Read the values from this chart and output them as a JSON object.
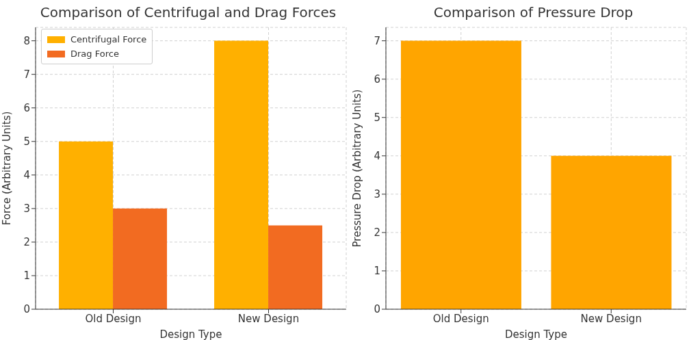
{
  "chart_data": [
    {
      "type": "bar",
      "title": "Comparison of Centrifugal and Drag Forces",
      "xlabel": "Design Type",
      "ylabel": "Force (Arbitrary Units)",
      "categories": [
        "Old Design",
        "New Design"
      ],
      "series": [
        {
          "name": "Centrifugal Force",
          "color": "#ffb000",
          "values": [
            5,
            8
          ]
        },
        {
          "name": "Drag Force",
          "color": "#f26b21",
          "values": [
            3,
            2.5
          ]
        }
      ],
      "ylim": [
        0,
        8.4
      ],
      "yticks": [
        0,
        1,
        2,
        3,
        4,
        5,
        6,
        7,
        8
      ],
      "grid": true,
      "legend": "top left"
    },
    {
      "type": "bar",
      "title": "Comparison of Pressure Drop",
      "xlabel": "Design Type",
      "ylabel": "Pressure Drop (Arbitrary Units)",
      "categories": [
        "Old Design",
        "New Design"
      ],
      "values": [
        7,
        4
      ],
      "color": "#ffa500",
      "ylim": [
        0,
        7.35
      ],
      "yticks": [
        0,
        1,
        2,
        3,
        4,
        5,
        6,
        7
      ],
      "grid": true
    }
  ]
}
